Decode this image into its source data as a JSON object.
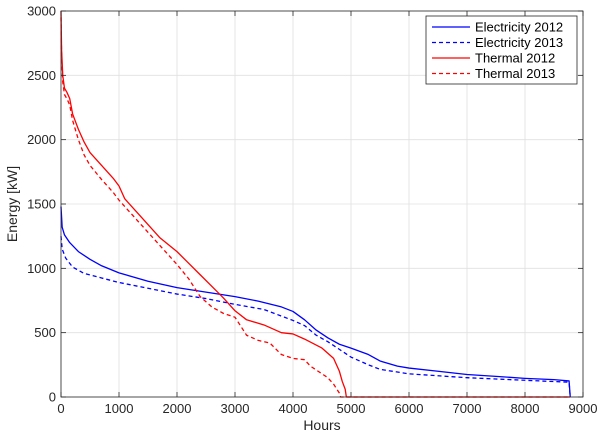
{
  "chart_data": {
    "type": "line",
    "xlabel": "Hours",
    "ylabel": "Energy [kW]",
    "xlim": [
      0,
      9000
    ],
    "ylim": [
      0,
      3000
    ],
    "x_ticks": [
      0,
      1000,
      2000,
      3000,
      4000,
      5000,
      6000,
      7000,
      8000,
      9000
    ],
    "y_ticks": [
      0,
      500,
      1000,
      1500,
      2000,
      2500,
      3000
    ],
    "grid": true,
    "legend_position": "top-right",
    "series": [
      {
        "name": "Electricity 2012",
        "color": "#0000ff",
        "dash": "solid",
        "points": [
          [
            0,
            1480
          ],
          [
            20,
            1320
          ],
          [
            60,
            1260
          ],
          [
            150,
            1200
          ],
          [
            300,
            1130
          ],
          [
            500,
            1070
          ],
          [
            700,
            1020
          ],
          [
            1000,
            965
          ],
          [
            1500,
            900
          ],
          [
            2000,
            850
          ],
          [
            2500,
            815
          ],
          [
            3000,
            780
          ],
          [
            3400,
            745
          ],
          [
            3800,
            700
          ],
          [
            4000,
            665
          ],
          [
            4200,
            600
          ],
          [
            4400,
            520
          ],
          [
            4600,
            460
          ],
          [
            4800,
            410
          ],
          [
            5000,
            380
          ],
          [
            5300,
            330
          ],
          [
            5500,
            280
          ],
          [
            5800,
            240
          ],
          [
            6000,
            225
          ],
          [
            6500,
            200
          ],
          [
            7000,
            175
          ],
          [
            7500,
            160
          ],
          [
            8000,
            145
          ],
          [
            8500,
            135
          ],
          [
            8760,
            125
          ],
          [
            8780,
            0
          ]
        ]
      },
      {
        "name": "Electricity 2013",
        "color": "#0000ff",
        "dash": "dashed",
        "points": [
          [
            0,
            1250
          ],
          [
            20,
            1150
          ],
          [
            80,
            1080
          ],
          [
            200,
            1010
          ],
          [
            400,
            960
          ],
          [
            700,
            925
          ],
          [
            1000,
            890
          ],
          [
            1500,
            845
          ],
          [
            2000,
            800
          ],
          [
            2500,
            765
          ],
          [
            3000,
            720
          ],
          [
            3500,
            680
          ],
          [
            4000,
            595
          ],
          [
            4200,
            555
          ],
          [
            4400,
            480
          ],
          [
            4600,
            430
          ],
          [
            4800,
            370
          ],
          [
            5000,
            310
          ],
          [
            5300,
            250
          ],
          [
            5500,
            215
          ],
          [
            6000,
            180
          ],
          [
            6500,
            165
          ],
          [
            7000,
            150
          ],
          [
            7500,
            140
          ],
          [
            8000,
            130
          ],
          [
            8500,
            120
          ],
          [
            8760,
            115
          ],
          [
            8780,
            0
          ]
        ]
      },
      {
        "name": "Thermal 2012",
        "color": "#ff0000",
        "dash": "solid",
        "points": [
          [
            0,
            3000
          ],
          [
            10,
            2700
          ],
          [
            30,
            2500
          ],
          [
            60,
            2400
          ],
          [
            100,
            2370
          ],
          [
            150,
            2320
          ],
          [
            200,
            2200
          ],
          [
            300,
            2080
          ],
          [
            400,
            1980
          ],
          [
            500,
            1900
          ],
          [
            700,
            1800
          ],
          [
            900,
            1700
          ],
          [
            1000,
            1640
          ],
          [
            1100,
            1540
          ],
          [
            1300,
            1440
          ],
          [
            1500,
            1340
          ],
          [
            1700,
            1240
          ],
          [
            2000,
            1130
          ],
          [
            2200,
            1040
          ],
          [
            2400,
            950
          ],
          [
            2600,
            860
          ],
          [
            2800,
            770
          ],
          [
            3000,
            670
          ],
          [
            3200,
            600
          ],
          [
            3500,
            560
          ],
          [
            3800,
            500
          ],
          [
            4000,
            490
          ],
          [
            4200,
            450
          ],
          [
            4500,
            380
          ],
          [
            4700,
            300
          ],
          [
            4800,
            200
          ],
          [
            4850,
            120
          ],
          [
            4900,
            60
          ],
          [
            4920,
            0
          ],
          [
            8780,
            0
          ]
        ]
      },
      {
        "name": "Thermal 2013",
        "color": "#ff0000",
        "dash": "dashed",
        "points": [
          [
            0,
            2950
          ],
          [
            10,
            2650
          ],
          [
            30,
            2450
          ],
          [
            60,
            2350
          ],
          [
            100,
            2320
          ],
          [
            150,
            2270
          ],
          [
            200,
            2150
          ],
          [
            300,
            2000
          ],
          [
            400,
            1880
          ],
          [
            500,
            1800
          ],
          [
            700,
            1690
          ],
          [
            900,
            1590
          ],
          [
            1000,
            1530
          ],
          [
            1200,
            1430
          ],
          [
            1400,
            1330
          ],
          [
            1600,
            1230
          ],
          [
            1800,
            1130
          ],
          [
            2000,
            1030
          ],
          [
            2200,
            920
          ],
          [
            2400,
            780
          ],
          [
            2600,
            700
          ],
          [
            2800,
            650
          ],
          [
            3000,
            620
          ],
          [
            3200,
            480
          ],
          [
            3400,
            440
          ],
          [
            3600,
            420
          ],
          [
            3800,
            330
          ],
          [
            4000,
            300
          ],
          [
            4200,
            290
          ],
          [
            4300,
            240
          ],
          [
            4400,
            210
          ],
          [
            4600,
            150
          ],
          [
            4700,
            100
          ],
          [
            4800,
            30
          ],
          [
            4820,
            0
          ],
          [
            8780,
            0
          ]
        ]
      }
    ]
  }
}
